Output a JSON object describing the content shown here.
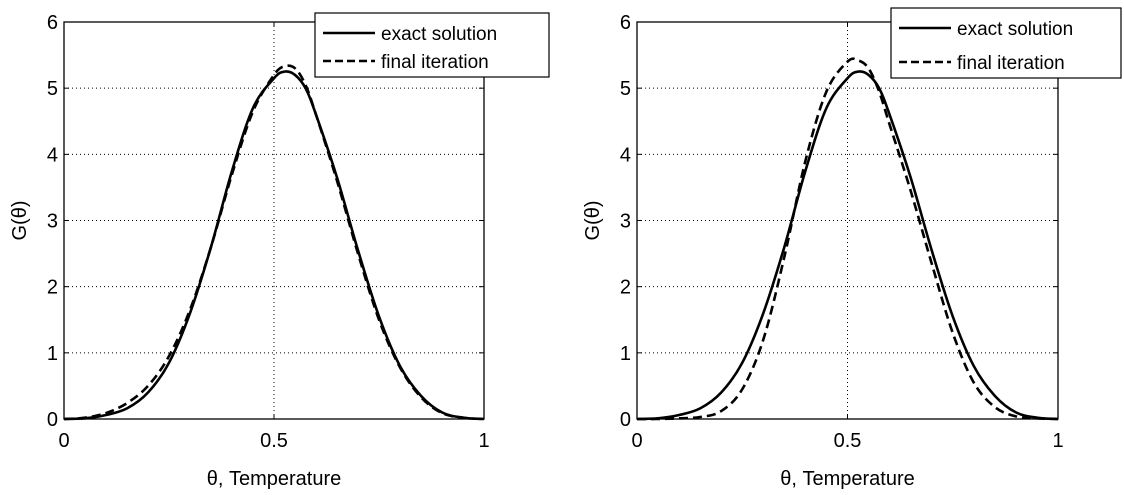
{
  "chart_data": [
    {
      "type": "line",
      "title": "",
      "xlabel": "θ, Temperature",
      "ylabel": "G(θ)",
      "xlim": [
        0,
        1
      ],
      "ylim": [
        0,
        6
      ],
      "xticks": [
        0,
        0.5,
        1
      ],
      "xtick_labels": [
        "0",
        "0.5",
        "1"
      ],
      "yticks": [
        0,
        1,
        2,
        3,
        4,
        5,
        6
      ],
      "ytick_labels": [
        "0",
        "1",
        "2",
        "3",
        "4",
        "5",
        "6"
      ],
      "grid": true,
      "legend_position": "top-right",
      "x": [
        0,
        0.05,
        0.1,
        0.15,
        0.2,
        0.25,
        0.3,
        0.35,
        0.4,
        0.45,
        0.5,
        0.525,
        0.55,
        0.575,
        0.6,
        0.65,
        0.7,
        0.75,
        0.8,
        0.85,
        0.9,
        0.95,
        1.0
      ],
      "series": [
        {
          "name": "exact solution",
          "style": "solid",
          "values": [
            0,
            0.01,
            0.06,
            0.16,
            0.4,
            0.85,
            1.6,
            2.6,
            3.75,
            4.7,
            5.15,
            5.25,
            5.2,
            5.0,
            4.6,
            3.65,
            2.55,
            1.55,
            0.8,
            0.35,
            0.1,
            0.02,
            0
          ]
        },
        {
          "name": "final iteration",
          "style": "dashed",
          "values": [
            0,
            0.02,
            0.09,
            0.24,
            0.5,
            0.95,
            1.65,
            2.6,
            3.7,
            4.65,
            5.2,
            5.33,
            5.3,
            5.05,
            4.6,
            3.6,
            2.5,
            1.5,
            0.78,
            0.33,
            0.09,
            0.02,
            0
          ]
        }
      ]
    },
    {
      "type": "line",
      "title": "",
      "xlabel": "θ, Temperature",
      "ylabel": "G(θ)",
      "xlim": [
        0,
        1
      ],
      "ylim": [
        0,
        6
      ],
      "xticks": [
        0,
        0.5,
        1
      ],
      "xtick_labels": [
        "0",
        "0.5",
        "1"
      ],
      "yticks": [
        0,
        1,
        2,
        3,
        4,
        5,
        6
      ],
      "ytick_labels": [
        "0",
        "1",
        "2",
        "3",
        "4",
        "5",
        "6"
      ],
      "grid": true,
      "legend_position": "top-right",
      "x": [
        0,
        0.05,
        0.1,
        0.15,
        0.2,
        0.25,
        0.3,
        0.35,
        0.4,
        0.45,
        0.5,
        0.525,
        0.55,
        0.575,
        0.6,
        0.65,
        0.7,
        0.75,
        0.8,
        0.85,
        0.9,
        0.95,
        1.0
      ],
      "series": [
        {
          "name": "exact solution",
          "style": "solid",
          "values": [
            0,
            0.01,
            0.06,
            0.16,
            0.4,
            0.85,
            1.6,
            2.6,
            3.75,
            4.7,
            5.15,
            5.25,
            5.2,
            5.0,
            4.6,
            3.65,
            2.55,
            1.55,
            0.8,
            0.35,
            0.1,
            0.02,
            0
          ]
        },
        {
          "name": "final iteration",
          "style": "dashed",
          "values": [
            0,
            0,
            0.01,
            0.03,
            0.12,
            0.45,
            1.2,
            2.45,
            3.9,
            4.95,
            5.4,
            5.42,
            5.3,
            4.95,
            4.45,
            3.45,
            2.35,
            1.3,
            0.55,
            0.18,
            0.04,
            0.01,
            0
          ]
        }
      ]
    }
  ]
}
